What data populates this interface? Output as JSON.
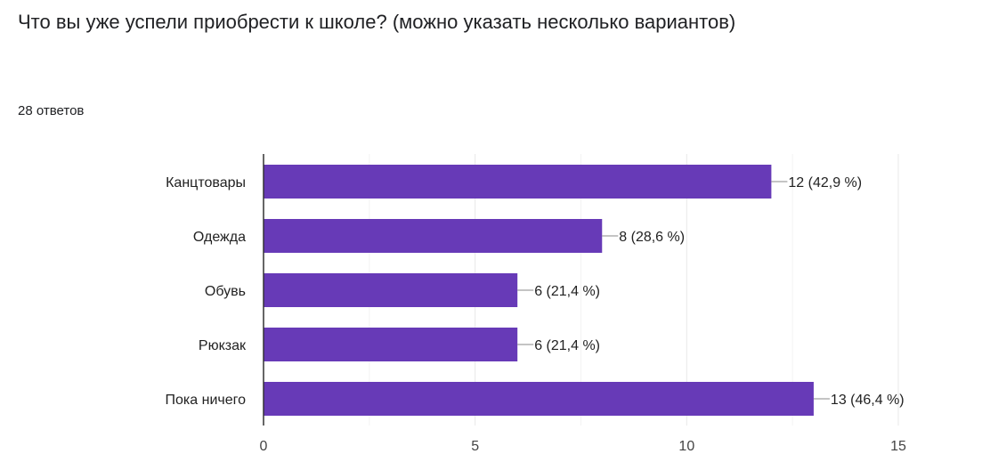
{
  "question": {
    "title": "Что вы уже успели приобрести к школе? (можно указать несколько вариантов)",
    "responses_count": "28 ответов"
  },
  "colors": {
    "bar": "#673ab7",
    "axis": "#333333",
    "grid": "#e8e8e8",
    "leader": "#888888"
  },
  "chart_data": {
    "type": "bar",
    "orientation": "horizontal",
    "categories": [
      "Канцтовары",
      "Одежда",
      "Обувь",
      "Рюкзак",
      "Пока ничего"
    ],
    "values": [
      12,
      8,
      6,
      6,
      13
    ],
    "value_labels": [
      "12 (42,9 %)",
      "8 (28,6 %)",
      "6 (21,4 %)",
      "6 (21,4 %)",
      "13 (46,4 %)"
    ],
    "xlim": [
      0,
      15
    ],
    "xticks": [
      0,
      5,
      10,
      15
    ],
    "grid": true
  }
}
